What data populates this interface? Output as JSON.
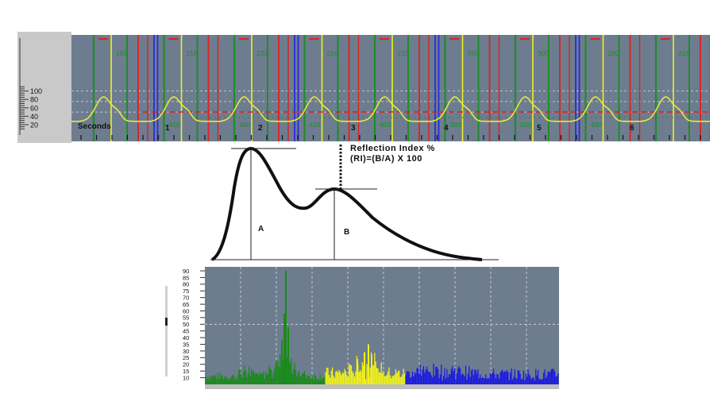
{
  "top_trace": {
    "y_ticks": [
      "100",
      "80",
      "60",
      "40",
      "20"
    ],
    "axis_label": "Seconds",
    "second_labels": [
      "1",
      "2",
      "3",
      "4",
      "5",
      "6"
    ],
    "beat_labels": [
      "199",
      "216",
      "233",
      "216",
      "233",
      "260",
      "300",
      "260",
      "216"
    ],
    "bottom_values": [
      "450",
      "450",
      "416",
      "450",
      "383",
      "500",
      "400"
    ],
    "colors": {
      "background": "#6d7d8f",
      "wave": "#e8e83a",
      "marker_green": "#1f8c2a",
      "marker_red": "#e02020",
      "marker_blue": "#2a2adc",
      "marker_yellow": "#f0f020"
    }
  },
  "diagram": {
    "title_line1": "Reflection Index %",
    "title_line2": "(RI)=(B/A) X 100",
    "label_a": "A",
    "label_b": "B"
  },
  "spectrum": {
    "y_ticks": [
      "90",
      "85",
      "80",
      "75",
      "70",
      "65",
      "60",
      "55",
      "50",
      "45",
      "40",
      "35",
      "30",
      "25",
      "20",
      "15",
      "10"
    ],
    "colors": {
      "background": "#6d7d8f",
      "low_band": "#1a8a1a",
      "mid_band": "#f2f21a",
      "high_band": "#1a1ae0"
    }
  }
}
